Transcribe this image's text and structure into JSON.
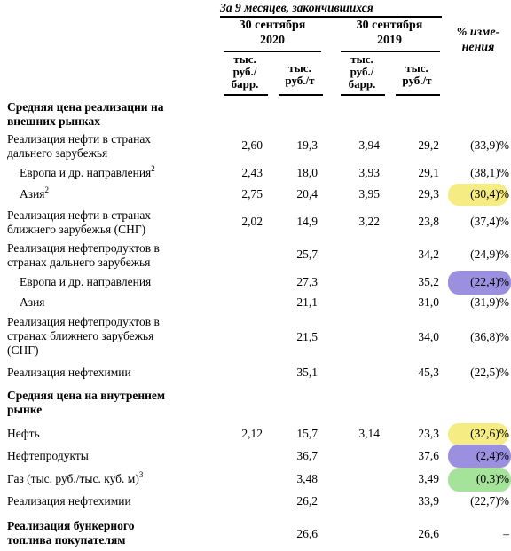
{
  "header": {
    "period": "За 9 месяцев, закончившихся",
    "col_2020": [
      "30 сентября",
      "2020"
    ],
    "col_2019": [
      "30 сентября",
      "2019"
    ],
    "change": [
      "% изме-",
      "нения"
    ],
    "units": {
      "rub_per_bbl": [
        "тыс.",
        "руб./",
        "барр."
      ],
      "rub_per_t": [
        "тыс.",
        "руб./т"
      ]
    }
  },
  "rows": [
    {
      "label": [
        "Средняя цена реализации на",
        "внешних рынках"
      ],
      "bold": true
    },
    {
      "label": [
        "Реализация нефти в странах",
        "дальнего зарубежья"
      ],
      "v2020_bbl": "2,60",
      "v2020_t": "19,3",
      "v2019_bbl": "3,94",
      "v2019_t": "29,2",
      "change": "(33,9)%"
    },
    {
      "label": [
        "Европа и др. направления"
      ],
      "sup": "2",
      "indent": true,
      "v2020_bbl": "2,43",
      "v2020_t": "18,0",
      "v2019_bbl": "3,93",
      "v2019_t": "29,1",
      "change": "(38,1)%"
    },
    {
      "label": [
        "Азия"
      ],
      "sup": "2",
      "indent": true,
      "v2020_bbl": "2,75",
      "v2020_t": "20,4",
      "v2019_bbl": "3,95",
      "v2019_t": "29,3",
      "change": "(30,4)%",
      "highlight": "yellow"
    },
    {
      "label": [
        "Реализация нефти в странах",
        "ближнего зарубежья (СНГ)"
      ],
      "v2020_bbl": "2,02",
      "v2020_t": "14,9",
      "v2019_bbl": "3,22",
      "v2019_t": "23,8",
      "change": "(37,4)%"
    },
    {
      "label": [
        "Реализация нефтепродуктов в",
        "странах дальнего зарубежья"
      ],
      "v2020_t": "25,7",
      "v2019_t": "34,2",
      "change": "(24,9)%"
    },
    {
      "label": [
        "Европа и др. направления"
      ],
      "indent": true,
      "v2020_t": "27,3",
      "v2019_t": "35,2",
      "change": "(22,4)%",
      "highlight": "purple"
    },
    {
      "label": [
        "Азия"
      ],
      "indent": true,
      "v2020_t": "21,1",
      "v2019_t": "31,0",
      "change": "(31,9)%"
    },
    {
      "label": [
        "Реализация нефтепродуктов в",
        "странах ближнего зарубежья",
        "(СНГ)"
      ],
      "v2020_t": "21,5",
      "v2019_t": "34,0",
      "change": "(36,8)%"
    },
    {
      "label": [
        "Реализация нефтехимии"
      ],
      "v2020_t": "35,1",
      "v2019_t": "45,3",
      "change": "(22,5)%"
    },
    {
      "label": [
        "Средняя цена на внутреннем",
        "рынке"
      ],
      "bold": true
    },
    {
      "label": [
        "Нефть"
      ],
      "v2020_bbl": "2,12",
      "v2020_t": "15,7",
      "v2019_bbl": "3,14",
      "v2019_t": "23,3",
      "change": "(32,6)%",
      "highlight": "yellow"
    },
    {
      "label": [
        "Нефтепродукты"
      ],
      "v2020_t": "36,7",
      "v2019_t": "37,6",
      "change": "(2,4)%",
      "highlight": "purple"
    },
    {
      "label": [
        "Газ (тыс. руб./тыс. куб. м)"
      ],
      "sup": "3",
      "v2020_t": "3,48",
      "v2019_t": "3,49",
      "change": "(0,3)%",
      "highlight": "green"
    },
    {
      "label": [
        "Реализация нефтехимии"
      ],
      "v2020_t": "26,2",
      "v2019_t": "33,9",
      "change": "(22,7)%"
    },
    {
      "label": [
        "Реализация бункерного",
        "топлива покупателям"
      ],
      "bold": true,
      "v2020_t": "26,6",
      "v2019_t": "26,6",
      "change": "–"
    }
  ],
  "highlight_colors": {
    "yellow": "#f5ec84",
    "purple": "#9b8fe0",
    "green": "#a6e39a"
  }
}
